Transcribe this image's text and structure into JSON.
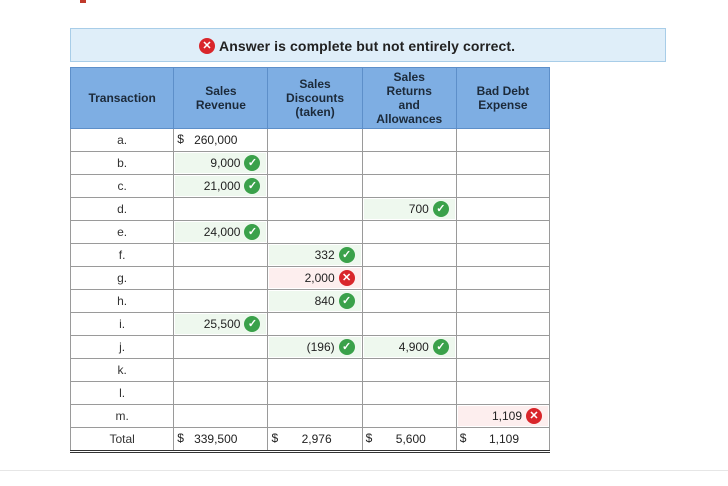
{
  "banner": {
    "status_icon": "x-circle-icon",
    "text": "Answer is complete but not entirely correct."
  },
  "table": {
    "headers": {
      "transaction": "Transaction",
      "sales_revenue_1": "Sales",
      "sales_revenue_2": "Revenue",
      "discounts_1": "Sales",
      "discounts_2": "Discounts",
      "discounts_3": "(taken)",
      "returns_1": "Sales",
      "returns_2": "Returns",
      "returns_3": "and",
      "returns_4": "Allowances",
      "bad_debt_1": "Bad Debt",
      "bad_debt_2": "Expense"
    },
    "rows": [
      {
        "label": "a.",
        "sales_revenue": "260,000",
        "sales_revenue_dollar": "$"
      },
      {
        "label": "b.",
        "sales_revenue": "9,000"
      },
      {
        "label": "c.",
        "sales_revenue": "21,000"
      },
      {
        "label": "d.",
        "returns": "700"
      },
      {
        "label": "e.",
        "sales_revenue": "24,000"
      },
      {
        "label": "f.",
        "discounts": "332"
      },
      {
        "label": "g.",
        "discounts": "2,000"
      },
      {
        "label": "h.",
        "discounts": "840"
      },
      {
        "label": "i.",
        "sales_revenue": "25,500"
      },
      {
        "label": "j.",
        "discounts": "(196)",
        "returns": "4,900"
      },
      {
        "label": "k."
      },
      {
        "label": "l."
      },
      {
        "label": "m.",
        "bad_debt": "1,109"
      }
    ],
    "total": {
      "label": "Total",
      "currency": "$",
      "sales_revenue": "339,500",
      "discounts": "2,976",
      "returns": "5,600",
      "bad_debt": "1,109"
    }
  },
  "colors": {
    "correct": "#3aa14a",
    "incorrect": "#d9262b",
    "header_bg": "#7eaee3",
    "banner_bg": "#dfeef9"
  }
}
